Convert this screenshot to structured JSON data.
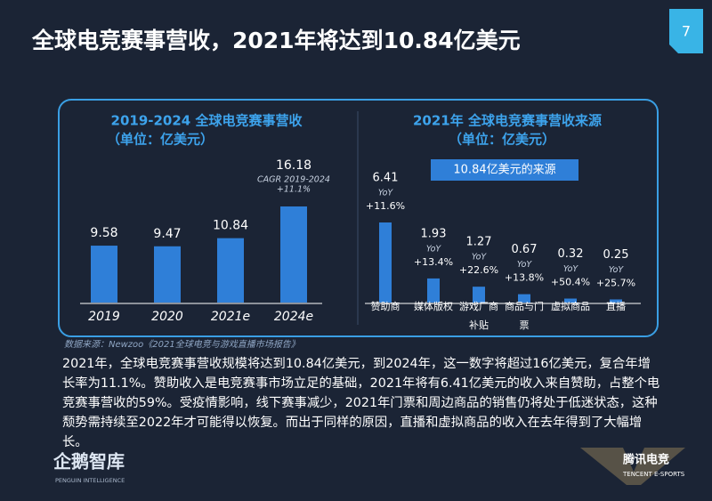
{
  "slide": {
    "title": "全球电竞赛事营收，2021年将达到10.84亿美元",
    "page_number": "7"
  },
  "chart_data": [
    {
      "type": "bar",
      "title": "2019-2024 全球电竞赛事营收",
      "subtitle": "（单位：亿美元）",
      "categories": [
        "2019",
        "2020",
        "2021e",
        "2024e"
      ],
      "values": [
        9.58,
        9.47,
        10.84,
        16.18
      ],
      "color": "#2f7fd8",
      "annotations": [
        "CAGR 2019-2024",
        "+11.1%"
      ]
    },
    {
      "type": "bar",
      "title": "2021年 全球电竞赛事营收来源",
      "subtitle": "（单位：亿美元）",
      "label": "10.84亿美元的来源",
      "categories": [
        "赞助商",
        "媒体版权",
        "游戏厂商补贴",
        "商品与门票",
        "虚拟商品",
        "直播"
      ],
      "values": [
        6.41,
        1.93,
        1.27,
        0.67,
        0.32,
        0.25
      ],
      "color": "#2f7fd8",
      "growth_prefix": "YoY",
      "growth": [
        "+11.6%",
        "+13.4%",
        "+22.6%",
        "+13.8%",
        "+50.4%",
        "+25.7%"
      ]
    }
  ],
  "source": "数据来源：Newzoo《2021全球电竞与游戏直播市场报告》",
  "body": "2021年，全球电竞赛事营收规模将达到10.84亿美元，到2024年，这一数字将超过16亿美元，复合年增长率为11.1%。赞助收入是电竞赛事市场立足的基础，2021年将有6.41亿美元的收入来自赞助，占整个电竞赛事营收的59%。受疫情影响，线下赛事减少，2021年门票和周边商品的销售仍将处于低迷状态，这种颓势需持续至2022年才可能得以恢复。而出于同样的原因，直播和虚拟商品的收入在去年得到了大幅增长。",
  "logos": {
    "left": "企鹅智库",
    "left_sub": "PENGUIN INTELLIGENCE",
    "right": "腾讯电竞",
    "right_sub": "TENCENT E-SPORTS"
  }
}
